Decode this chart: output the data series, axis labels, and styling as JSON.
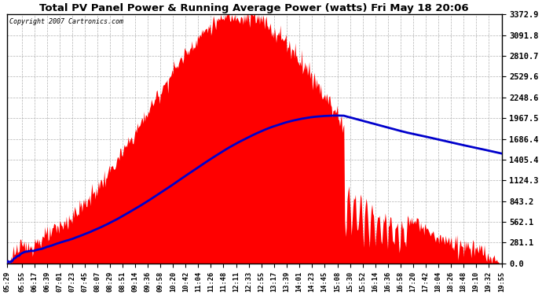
{
  "title": "Total PV Panel Power & Running Average Power (watts) Fri May 18 20:06",
  "copyright": "Copyright 2007 Cartronics.com",
  "bg_color": "#ffffff",
  "plot_bg_color": "#ffffff",
  "fill_color": "#ff0000",
  "line_color": "#0000cc",
  "grid_color": "#aaaaaa",
  "title_color": "#000000",
  "ymax": 3372.9,
  "yticks": [
    0.0,
    281.1,
    562.1,
    843.2,
    1124.3,
    1405.4,
    1686.4,
    1967.5,
    2248.6,
    2529.6,
    2810.7,
    3091.8,
    3372.9
  ],
  "xtick_labels": [
    "05:29",
    "05:55",
    "06:17",
    "06:39",
    "07:01",
    "07:23",
    "07:45",
    "08:07",
    "08:29",
    "08:51",
    "09:14",
    "09:36",
    "09:58",
    "10:20",
    "10:42",
    "11:04",
    "11:26",
    "11:48",
    "12:11",
    "12:33",
    "12:55",
    "13:17",
    "13:39",
    "14:01",
    "14:23",
    "14:45",
    "15:08",
    "15:30",
    "15:52",
    "16:14",
    "16:36",
    "16:58",
    "17:20",
    "17:42",
    "18:04",
    "18:26",
    "18:48",
    "19:10",
    "19:32",
    "19:55"
  ],
  "figsize": [
    6.9,
    3.75
  ],
  "dpi": 100
}
